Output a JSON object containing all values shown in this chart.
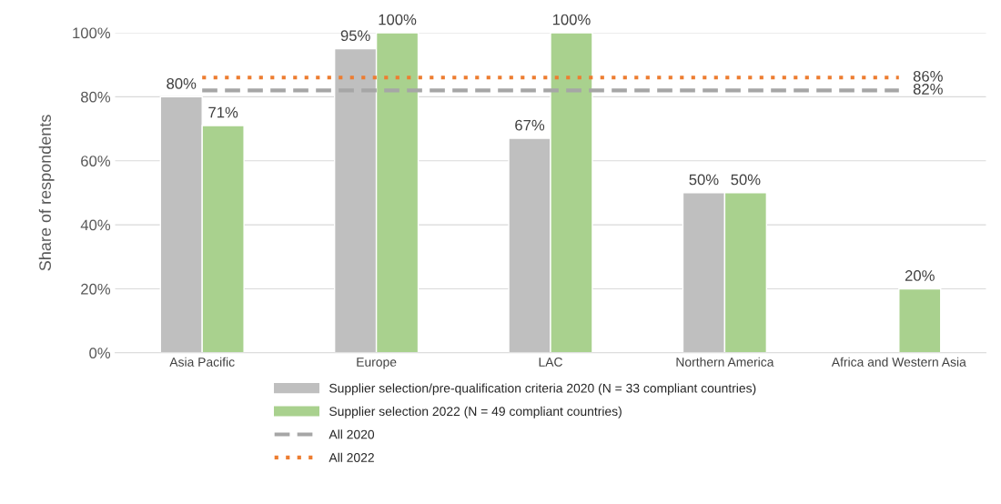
{
  "chart_data": {
    "type": "bar",
    "ylabel": "Share of respondents",
    "categories": [
      "Asia Pacific",
      "Europe",
      "LAC",
      "Northern America",
      "Africa and Western Asia"
    ],
    "series": [
      {
        "name": "Supplier selection/pre-qualification criteria 2020 (N = 33 compliant countries)",
        "color": "#bfbfbf",
        "values": [
          80,
          95,
          67,
          50,
          null
        ],
        "value_labels": [
          "80%",
          "95%",
          "67%",
          "50%",
          null
        ]
      },
      {
        "name": "Supplier selection 2022 (N = 49 compliant countries)",
        "color": "#a9d18e",
        "values": [
          71,
          100,
          100,
          50,
          20
        ],
        "value_labels": [
          "71%",
          "100%",
          "100%",
          "50%",
          "20%"
        ]
      },
      {
        "name": "All 2020",
        "type": "line",
        "line_style": "dashed",
        "color": "#a6a6a6",
        "values": [
          82,
          82,
          82,
          82,
          82
        ],
        "value_labels": [
          null,
          null,
          null,
          null,
          "82%"
        ]
      },
      {
        "name": "All 2022",
        "type": "line",
        "line_style": "dotted",
        "color": "#ed7d31",
        "values": [
          86,
          86,
          86,
          86,
          86
        ],
        "value_labels": [
          null,
          null,
          null,
          null,
          "86%"
        ]
      }
    ],
    "ylim": [
      0,
      100
    ],
    "yticks": [
      {
        "value": 0,
        "label": "0%"
      },
      {
        "value": 20,
        "label": "20%"
      },
      {
        "value": 40,
        "label": "40%"
      },
      {
        "value": 60,
        "label": "60%"
      },
      {
        "value": 80,
        "label": "80%"
      },
      {
        "value": 100,
        "label": "100%"
      }
    ],
    "grid": "y",
    "legend": "bottom"
  }
}
